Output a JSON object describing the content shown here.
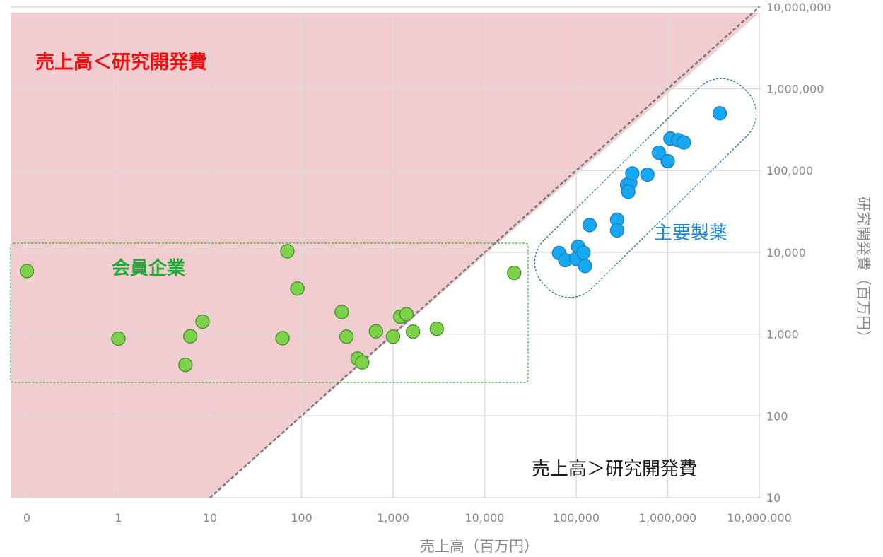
{
  "chart_data": {
    "type": "scatter",
    "xlabel": "売上高（百万円）",
    "ylabel": "研究開発費（百万円）",
    "x_scale": "log",
    "y_scale": "log",
    "x_ticks": [
      "0",
      "1",
      "10",
      "100",
      "1,000",
      "10,000",
      "100,000",
      "1,000,000",
      "10,000,000"
    ],
    "y_ticks": [
      "10",
      "100",
      "1,000",
      "10,000",
      "100,000",
      "1,000,000",
      "10,000,000"
    ],
    "grid": true,
    "reference_line": "y = x",
    "annotations": {
      "upper_region": "売上高＜研究開発費",
      "lower_region": "売上高＞研究開発費",
      "member_group": "会員企業",
      "major_group": "主要製薬"
    },
    "colors": {
      "upper_region": "#f2cdd0",
      "member_points": "#7ed24a",
      "member_outline": "#3f8f2a",
      "major_points": "#16a8f0",
      "major_outline": "#1b7fc4"
    },
    "series": [
      {
        "name": "会員企業",
        "points": [
          {
            "x": 0.1,
            "y": 5900
          },
          {
            "x": 1,
            "y": 880
          },
          {
            "x": 5.4,
            "y": 420
          },
          {
            "x": 6.1,
            "y": 940
          },
          {
            "x": 8.3,
            "y": 1420
          },
          {
            "x": 62,
            "y": 890
          },
          {
            "x": 70,
            "y": 10300
          },
          {
            "x": 90,
            "y": 3600
          },
          {
            "x": 275,
            "y": 1860
          },
          {
            "x": 310,
            "y": 930
          },
          {
            "x": 410,
            "y": 500
          },
          {
            "x": 460,
            "y": 450
          },
          {
            "x": 650,
            "y": 1080
          },
          {
            "x": 1000,
            "y": 930
          },
          {
            "x": 1200,
            "y": 1630
          },
          {
            "x": 1400,
            "y": 1750
          },
          {
            "x": 1650,
            "y": 1070
          },
          {
            "x": 3000,
            "y": 1160
          },
          {
            "x": 21000,
            "y": 5600
          }
        ]
      },
      {
        "name": "主要製薬",
        "points": [
          {
            "x": 65000,
            "y": 9800
          },
          {
            "x": 76000,
            "y": 8000
          },
          {
            "x": 100000,
            "y": 8300
          },
          {
            "x": 105000,
            "y": 11700
          },
          {
            "x": 120000,
            "y": 9900
          },
          {
            "x": 125000,
            "y": 6800
          },
          {
            "x": 140000,
            "y": 21500
          },
          {
            "x": 280000,
            "y": 25000
          },
          {
            "x": 280000,
            "y": 18500
          },
          {
            "x": 360000,
            "y": 67000
          },
          {
            "x": 390000,
            "y": 71000
          },
          {
            "x": 370000,
            "y": 55000
          },
          {
            "x": 410000,
            "y": 92000
          },
          {
            "x": 600000,
            "y": 89000
          },
          {
            "x": 800000,
            "y": 165000
          },
          {
            "x": 1000000,
            "y": 130000
          },
          {
            "x": 1070000,
            "y": 245000
          },
          {
            "x": 1300000,
            "y": 235000
          },
          {
            "x": 1500000,
            "y": 220000
          },
          {
            "x": 3700000,
            "y": 500000
          }
        ]
      }
    ]
  }
}
